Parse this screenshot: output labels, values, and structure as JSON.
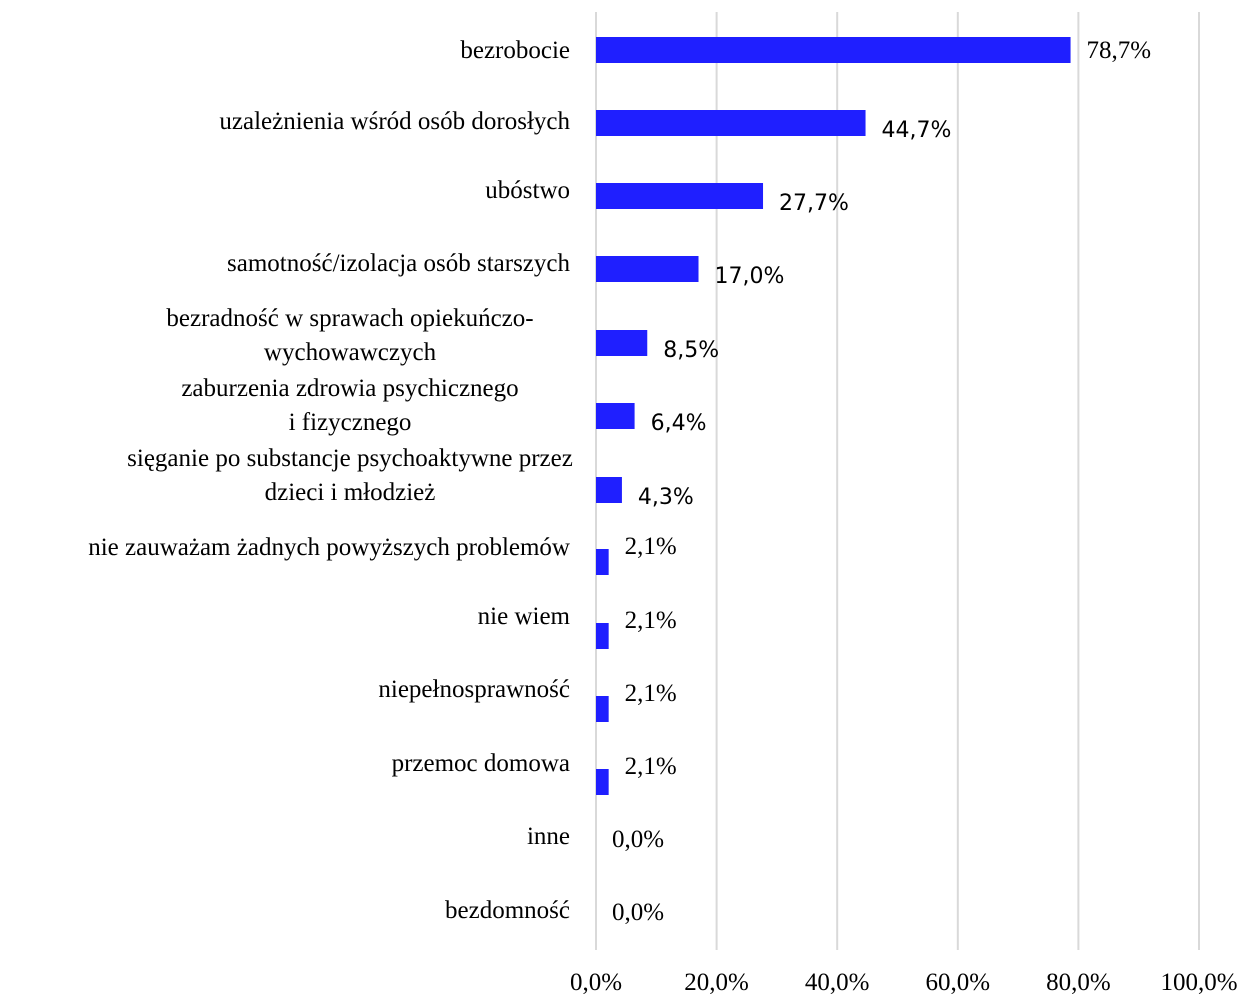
{
  "chart_data": {
    "type": "bar",
    "orientation": "horizontal",
    "categories": [
      [
        "bezrobocie"
      ],
      [
        "uzależnienia wśród osób dorosłych"
      ],
      [
        "ubóstwo"
      ],
      [
        "samotność/izolacja osób starszych"
      ],
      [
        "bezradność w sprawach opiekuńczo-",
        "wychowawczych"
      ],
      [
        "zaburzenia zdrowia psychicznego",
        "i fizycznego"
      ],
      [
        "sięganie po substancje psychoaktywne przez",
        "dzieci i młodzież"
      ],
      [
        "nie zauważam żadnych powyższych problemów"
      ],
      [
        "nie wiem"
      ],
      [
        "niepełnosprawność"
      ],
      [
        "przemoc domowa"
      ],
      [
        "inne"
      ],
      [
        "bezdomność"
      ]
    ],
    "values": [
      78.7,
      44.7,
      27.7,
      17.0,
      8.5,
      6.4,
      4.3,
      2.1,
      2.1,
      2.1,
      2.1,
      0.0,
      0.0
    ],
    "data_labels": [
      "78,7%",
      "44,7%",
      "27,7%",
      "17,0%",
      "8,5%",
      "6,4%",
      "4,3%",
      "2,1%",
      "2,1%",
      "2,1%",
      "2,1%",
      "0,0%",
      "0,0%"
    ],
    "xlim": [
      0,
      100
    ],
    "x_ticks": [
      "0,0%",
      "20,0%",
      "40,0%",
      "60,0%",
      "80,0%",
      "100,0%"
    ],
    "bar_color": "#1f1fff",
    "grid": true,
    "legend": false,
    "title": "",
    "xlabel": "",
    "ylabel": ""
  }
}
